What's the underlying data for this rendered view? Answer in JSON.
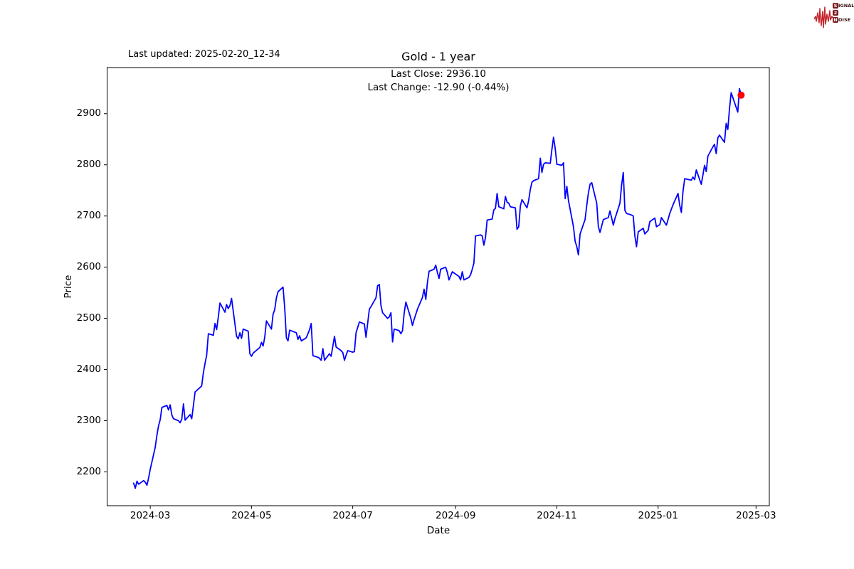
{
  "header": {
    "last_updated": "Last updated: 2025-02-20_12-34"
  },
  "annotation": {
    "line1": "Last Close: 2936.10",
    "line2": "Last Change: -12.90 (-0.44%)"
  },
  "logo": {
    "line1_initial": "S",
    "line1_rest": "IGNAL",
    "line2_initial": "2",
    "line3_initial": "N",
    "line3_rest": "OISE",
    "waveform_color": "#c3252b",
    "box_color": "#7a1c20",
    "letters_color": "#3d1113"
  },
  "chart_data": {
    "type": "line",
    "title": "Gold - 1 year",
    "xlabel": "Date",
    "ylabel": "Price",
    "legend": null,
    "grid": false,
    "line_color": "#0000ff",
    "marker_color": "#ff0000",
    "last_close": 2936.1,
    "last_change": -12.9,
    "last_change_pct": "-0.44%",
    "xlim": [
      "2024-02-04",
      "2025-03-09"
    ],
    "ylim": [
      2134,
      2990
    ],
    "y_ticks": [
      2200,
      2300,
      2400,
      2500,
      2600,
      2700,
      2800,
      2900
    ],
    "x_ticks": [
      {
        "date": "2024-03-01",
        "label": "2024-03"
      },
      {
        "date": "2024-05-01",
        "label": "2024-05"
      },
      {
        "date": "2024-07-01",
        "label": "2024-07"
      },
      {
        "date": "2024-09-01",
        "label": "2024-09"
      },
      {
        "date": "2024-11-01",
        "label": "2024-11"
      },
      {
        "date": "2025-01-01",
        "label": "2025-01"
      },
      {
        "date": "2025-03-01",
        "label": "2025-03"
      }
    ],
    "series": [
      {
        "name": "Gold",
        "points": [
          [
            "2024-02-20",
            2178
          ],
          [
            "2024-02-21",
            2168
          ],
          [
            "2024-02-22",
            2182
          ],
          [
            "2024-02-23",
            2176
          ],
          [
            "2024-02-26",
            2183
          ],
          [
            "2024-02-27",
            2180
          ],
          [
            "2024-02-28",
            2174
          ],
          [
            "2024-02-29",
            2188
          ],
          [
            "2024-03-01",
            2205
          ],
          [
            "2024-03-04",
            2248
          ],
          [
            "2024-03-05",
            2272
          ],
          [
            "2024-03-06",
            2290
          ],
          [
            "2024-03-07",
            2302
          ],
          [
            "2024-03-08",
            2326
          ],
          [
            "2024-03-11",
            2330
          ],
          [
            "2024-03-12",
            2321
          ],
          [
            "2024-03-13",
            2331
          ],
          [
            "2024-03-14",
            2311
          ],
          [
            "2024-03-15",
            2304
          ],
          [
            "2024-03-18",
            2300
          ],
          [
            "2024-03-19",
            2296
          ],
          [
            "2024-03-20",
            2303
          ],
          [
            "2024-03-21",
            2333
          ],
          [
            "2024-03-22",
            2301
          ],
          [
            "2024-03-25",
            2312
          ],
          [
            "2024-03-26",
            2304
          ],
          [
            "2024-03-27",
            2330
          ],
          [
            "2024-03-28",
            2356
          ],
          [
            "2024-04-01",
            2368
          ],
          [
            "2024-04-02",
            2394
          ],
          [
            "2024-04-03",
            2412
          ],
          [
            "2024-04-04",
            2428
          ],
          [
            "2024-04-05",
            2470
          ],
          [
            "2024-04-08",
            2467
          ],
          [
            "2024-04-09",
            2490
          ],
          [
            "2024-04-10",
            2478
          ],
          [
            "2024-04-11",
            2502
          ],
          [
            "2024-04-12",
            2530
          ],
          [
            "2024-04-15",
            2512
          ],
          [
            "2024-04-16",
            2527
          ],
          [
            "2024-04-17",
            2519
          ],
          [
            "2024-04-18",
            2525
          ],
          [
            "2024-04-19",
            2539
          ],
          [
            "2024-04-22",
            2465
          ],
          [
            "2024-04-23",
            2460
          ],
          [
            "2024-04-24",
            2472
          ],
          [
            "2024-04-25",
            2461
          ],
          [
            "2024-04-26",
            2479
          ],
          [
            "2024-04-29",
            2475
          ],
          [
            "2024-04-30",
            2431
          ],
          [
            "2024-05-01",
            2426
          ],
          [
            "2024-05-02",
            2432
          ],
          [
            "2024-05-03",
            2435
          ],
          [
            "2024-05-06",
            2443
          ],
          [
            "2024-05-07",
            2453
          ],
          [
            "2024-05-08",
            2446
          ],
          [
            "2024-05-09",
            2463
          ],
          [
            "2024-05-10",
            2495
          ],
          [
            "2024-05-13",
            2479
          ],
          [
            "2024-05-14",
            2508
          ],
          [
            "2024-05-15",
            2517
          ],
          [
            "2024-05-16",
            2540
          ],
          [
            "2024-05-17",
            2552
          ],
          [
            "2024-05-20",
            2561
          ],
          [
            "2024-05-21",
            2522
          ],
          [
            "2024-05-22",
            2462
          ],
          [
            "2024-05-23",
            2456
          ],
          [
            "2024-05-24",
            2477
          ],
          [
            "2024-05-28",
            2472
          ],
          [
            "2024-05-29",
            2459
          ],
          [
            "2024-05-30",
            2466
          ],
          [
            "2024-05-31",
            2456
          ],
          [
            "2024-06-03",
            2462
          ],
          [
            "2024-06-04",
            2470
          ],
          [
            "2024-06-05",
            2478
          ],
          [
            "2024-06-06",
            2490
          ],
          [
            "2024-06-07",
            2427
          ],
          [
            "2024-06-10",
            2424
          ],
          [
            "2024-06-11",
            2422
          ],
          [
            "2024-06-12",
            2418
          ],
          [
            "2024-06-13",
            2441
          ],
          [
            "2024-06-14",
            2418
          ],
          [
            "2024-06-17",
            2431
          ],
          [
            "2024-06-18",
            2426
          ],
          [
            "2024-06-20",
            2465
          ],
          [
            "2024-06-21",
            2444
          ],
          [
            "2024-06-24",
            2437
          ],
          [
            "2024-06-25",
            2433
          ],
          [
            "2024-06-26",
            2418
          ],
          [
            "2024-06-27",
            2428
          ],
          [
            "2024-06-28",
            2437
          ],
          [
            "2024-07-01",
            2434
          ],
          [
            "2024-07-02",
            2435
          ],
          [
            "2024-07-03",
            2472
          ],
          [
            "2024-07-05",
            2493
          ],
          [
            "2024-07-08",
            2489
          ],
          [
            "2024-07-09",
            2463
          ],
          [
            "2024-07-10",
            2490
          ],
          [
            "2024-07-11",
            2518
          ],
          [
            "2024-07-12",
            2523
          ],
          [
            "2024-07-15",
            2540
          ],
          [
            "2024-07-16",
            2564
          ],
          [
            "2024-07-17",
            2566
          ],
          [
            "2024-07-18",
            2525
          ],
          [
            "2024-07-19",
            2511
          ],
          [
            "2024-07-22",
            2500
          ],
          [
            "2024-07-23",
            2503
          ],
          [
            "2024-07-24",
            2511
          ],
          [
            "2024-07-25",
            2454
          ],
          [
            "2024-07-26",
            2479
          ],
          [
            "2024-07-29",
            2476
          ],
          [
            "2024-07-30",
            2470
          ],
          [
            "2024-07-31",
            2476
          ],
          [
            "2024-08-01",
            2510
          ],
          [
            "2024-08-02",
            2532
          ],
          [
            "2024-08-05",
            2500
          ],
          [
            "2024-08-06",
            2486
          ],
          [
            "2024-08-07",
            2498
          ],
          [
            "2024-08-08",
            2508
          ],
          [
            "2024-08-09",
            2518
          ],
          [
            "2024-08-12",
            2541
          ],
          [
            "2024-08-13",
            2557
          ],
          [
            "2024-08-14",
            2537
          ],
          [
            "2024-08-15",
            2570
          ],
          [
            "2024-08-16",
            2592
          ],
          [
            "2024-08-19",
            2596
          ],
          [
            "2024-08-20",
            2604
          ],
          [
            "2024-08-21",
            2590
          ],
          [
            "2024-08-22",
            2578
          ],
          [
            "2024-08-23",
            2596
          ],
          [
            "2024-08-26",
            2600
          ],
          [
            "2024-08-27",
            2590
          ],
          [
            "2024-08-28",
            2575
          ],
          [
            "2024-08-29",
            2583
          ],
          [
            "2024-08-30",
            2591
          ],
          [
            "2024-09-03",
            2582
          ],
          [
            "2024-09-04",
            2575
          ],
          [
            "2024-09-05",
            2591
          ],
          [
            "2024-09-06",
            2575
          ],
          [
            "2024-09-09",
            2580
          ],
          [
            "2024-09-10",
            2585
          ],
          [
            "2024-09-11",
            2596
          ],
          [
            "2024-09-12",
            2608
          ],
          [
            "2024-09-13",
            2661
          ],
          [
            "2024-09-16",
            2663
          ],
          [
            "2024-09-17",
            2661
          ],
          [
            "2024-09-18",
            2643
          ],
          [
            "2024-09-19",
            2658
          ],
          [
            "2024-09-20",
            2692
          ],
          [
            "2024-09-23",
            2694
          ],
          [
            "2024-09-24",
            2712
          ],
          [
            "2024-09-25",
            2715
          ],
          [
            "2024-09-26",
            2744
          ],
          [
            "2024-09-27",
            2718
          ],
          [
            "2024-09-30",
            2714
          ],
          [
            "2024-10-01",
            2738
          ],
          [
            "2024-10-02",
            2727
          ],
          [
            "2024-10-03",
            2725
          ],
          [
            "2024-10-04",
            2718
          ],
          [
            "2024-10-07",
            2716
          ],
          [
            "2024-10-08",
            2674
          ],
          [
            "2024-10-09",
            2679
          ],
          [
            "2024-10-10",
            2720
          ],
          [
            "2024-10-11",
            2732
          ],
          [
            "2024-10-14",
            2716
          ],
          [
            "2024-10-15",
            2730
          ],
          [
            "2024-10-16",
            2752
          ],
          [
            "2024-10-17",
            2766
          ],
          [
            "2024-10-18",
            2769
          ],
          [
            "2024-10-21",
            2773
          ],
          [
            "2024-10-22",
            2813
          ],
          [
            "2024-10-23",
            2785
          ],
          [
            "2024-10-24",
            2801
          ],
          [
            "2024-10-25",
            2804
          ],
          [
            "2024-10-28",
            2803
          ],
          [
            "2024-10-29",
            2830
          ],
          [
            "2024-10-30",
            2854
          ],
          [
            "2024-10-31",
            2831
          ],
          [
            "2024-11-01",
            2801
          ],
          [
            "2024-11-04",
            2799
          ],
          [
            "2024-11-05",
            2804
          ],
          [
            "2024-11-06",
            2734
          ],
          [
            "2024-11-07",
            2758
          ],
          [
            "2024-11-08",
            2730
          ],
          [
            "2024-11-11",
            2679
          ],
          [
            "2024-11-12",
            2651
          ],
          [
            "2024-11-13",
            2640
          ],
          [
            "2024-11-14",
            2624
          ],
          [
            "2024-11-15",
            2665
          ],
          [
            "2024-11-18",
            2693
          ],
          [
            "2024-11-19",
            2721
          ],
          [
            "2024-11-20",
            2745
          ],
          [
            "2024-11-21",
            2762
          ],
          [
            "2024-11-22",
            2765
          ],
          [
            "2024-11-25",
            2725
          ],
          [
            "2024-11-26",
            2679
          ],
          [
            "2024-11-27",
            2668
          ],
          [
            "2024-11-29",
            2693
          ],
          [
            "2024-12-02",
            2697
          ],
          [
            "2024-12-03",
            2710
          ],
          [
            "2024-12-04",
            2696
          ],
          [
            "2024-12-05",
            2682
          ],
          [
            "2024-12-06",
            2695
          ],
          [
            "2024-12-09",
            2725
          ],
          [
            "2024-12-10",
            2760
          ],
          [
            "2024-12-11",
            2785
          ],
          [
            "2024-12-12",
            2711
          ],
          [
            "2024-12-13",
            2705
          ],
          [
            "2024-12-16",
            2702
          ],
          [
            "2024-12-17",
            2700
          ],
          [
            "2024-12-18",
            2661
          ],
          [
            "2024-12-19",
            2640
          ],
          [
            "2024-12-20",
            2669
          ],
          [
            "2024-12-23",
            2676
          ],
          [
            "2024-12-24",
            2665
          ],
          [
            "2024-12-26",
            2672
          ],
          [
            "2024-12-27",
            2689
          ],
          [
            "2024-12-30",
            2696
          ],
          [
            "2024-12-31",
            2679
          ],
          [
            "2025-01-02",
            2683
          ],
          [
            "2025-01-03",
            2697
          ],
          [
            "2025-01-06",
            2682
          ],
          [
            "2025-01-07",
            2693
          ],
          [
            "2025-01-08",
            2705
          ],
          [
            "2025-01-10",
            2722
          ],
          [
            "2025-01-13",
            2744
          ],
          [
            "2025-01-14",
            2721
          ],
          [
            "2025-01-15",
            2707
          ],
          [
            "2025-01-16",
            2748
          ],
          [
            "2025-01-17",
            2773
          ],
          [
            "2025-01-21",
            2770
          ],
          [
            "2025-01-22",
            2776
          ],
          [
            "2025-01-23",
            2771
          ],
          [
            "2025-01-24",
            2790
          ],
          [
            "2025-01-27",
            2762
          ],
          [
            "2025-01-28",
            2780
          ],
          [
            "2025-01-29",
            2799
          ],
          [
            "2025-01-30",
            2787
          ],
          [
            "2025-01-31",
            2817
          ],
          [
            "2025-02-03",
            2835
          ],
          [
            "2025-02-04",
            2840
          ],
          [
            "2025-02-05",
            2822
          ],
          [
            "2025-02-06",
            2853
          ],
          [
            "2025-02-07",
            2858
          ],
          [
            "2025-02-10",
            2844
          ],
          [
            "2025-02-11",
            2881
          ],
          [
            "2025-02-12",
            2869
          ],
          [
            "2025-02-13",
            2909
          ],
          [
            "2025-02-14",
            2941
          ],
          [
            "2025-02-18",
            2903
          ],
          [
            "2025-02-19",
            2949
          ],
          [
            "2025-02-20",
            2936.1
          ]
        ]
      }
    ]
  }
}
